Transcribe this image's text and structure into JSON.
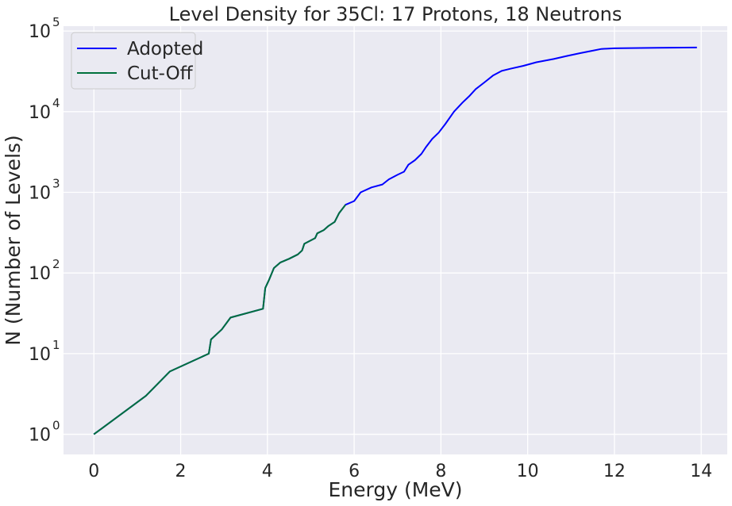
{
  "chart_data": {
    "type": "line",
    "title": "Level Density for 35Cl: 17 Protons, 18 Neutrons",
    "xlabel": "Energy (MeV)",
    "ylabel": "N (Number of Levels)",
    "xlim": [
      -0.7,
      14.6
    ],
    "ylim_log10": [
      -0.25,
      5.06
    ],
    "yscale": "log",
    "grid": true,
    "background": "#eaeaf2",
    "legend_position": "top-left",
    "x_ticks": [
      0,
      2,
      4,
      6,
      8,
      10,
      12,
      14
    ],
    "y_ticks": [
      {
        "base": "10",
        "exp": "0",
        "value": 1
      },
      {
        "base": "10",
        "exp": "1",
        "value": 10
      },
      {
        "base": "10",
        "exp": "2",
        "value": 100
      },
      {
        "base": "10",
        "exp": "3",
        "value": 1000
      },
      {
        "base": "10",
        "exp": "4",
        "value": 10000
      },
      {
        "base": "10",
        "exp": "5",
        "value": 100000
      }
    ],
    "series": [
      {
        "name": "Adopted",
        "color": "#0000ff",
        "points": [
          [
            0,
            1
          ],
          [
            1.2,
            3
          ],
          [
            1.75,
            6
          ],
          [
            2.65,
            10
          ],
          [
            2.7,
            15
          ],
          [
            2.95,
            20
          ],
          [
            3.15,
            28
          ],
          [
            3.9,
            36
          ],
          [
            3.95,
            65
          ],
          [
            4.05,
            85
          ],
          [
            4.15,
            115
          ],
          [
            4.3,
            135
          ],
          [
            4.5,
            150
          ],
          [
            4.7,
            170
          ],
          [
            4.8,
            190
          ],
          [
            4.85,
            230
          ],
          [
            5.1,
            270
          ],
          [
            5.15,
            310
          ],
          [
            5.3,
            340
          ],
          [
            5.4,
            380
          ],
          [
            5.55,
            430
          ],
          [
            5.65,
            550
          ],
          [
            5.8,
            700
          ],
          [
            6.0,
            780
          ],
          [
            6.15,
            1000
          ],
          [
            6.4,
            1150
          ],
          [
            6.65,
            1250
          ],
          [
            6.8,
            1450
          ],
          [
            7.0,
            1650
          ],
          [
            7.15,
            1800
          ],
          [
            7.25,
            2200
          ],
          [
            7.4,
            2500
          ],
          [
            7.55,
            3000
          ],
          [
            7.65,
            3600
          ],
          [
            7.8,
            4600
          ],
          [
            7.95,
            5500
          ],
          [
            8.1,
            7000
          ],
          [
            8.3,
            10000
          ],
          [
            8.5,
            13000
          ],
          [
            8.65,
            15500
          ],
          [
            8.8,
            19000
          ],
          [
            9.0,
            23000
          ],
          [
            9.2,
            28000
          ],
          [
            9.4,
            32000
          ],
          [
            9.6,
            34000
          ],
          [
            9.9,
            37000
          ],
          [
            10.2,
            41000
          ],
          [
            10.6,
            45000
          ],
          [
            10.9,
            49000
          ],
          [
            11.2,
            53000
          ],
          [
            11.5,
            57000
          ],
          [
            11.7,
            60000
          ],
          [
            12.0,
            61000
          ],
          [
            13.0,
            62000
          ],
          [
            13.9,
            62500
          ]
        ]
      },
      {
        "name": "Cut-Off",
        "color": "#00703c",
        "points": [
          [
            0,
            1
          ],
          [
            1.2,
            3
          ],
          [
            1.75,
            6
          ],
          [
            2.65,
            10
          ],
          [
            2.7,
            15
          ],
          [
            2.95,
            20
          ],
          [
            3.15,
            28
          ],
          [
            3.9,
            36
          ],
          [
            3.95,
            65
          ],
          [
            4.05,
            85
          ],
          [
            4.15,
            115
          ],
          [
            4.3,
            135
          ],
          [
            4.5,
            150
          ],
          [
            4.7,
            170
          ],
          [
            4.8,
            190
          ],
          [
            4.85,
            230
          ],
          [
            5.1,
            270
          ],
          [
            5.15,
            310
          ],
          [
            5.3,
            340
          ],
          [
            5.4,
            380
          ],
          [
            5.55,
            430
          ],
          [
            5.65,
            550
          ],
          [
            5.8,
            700
          ]
        ]
      }
    ]
  }
}
